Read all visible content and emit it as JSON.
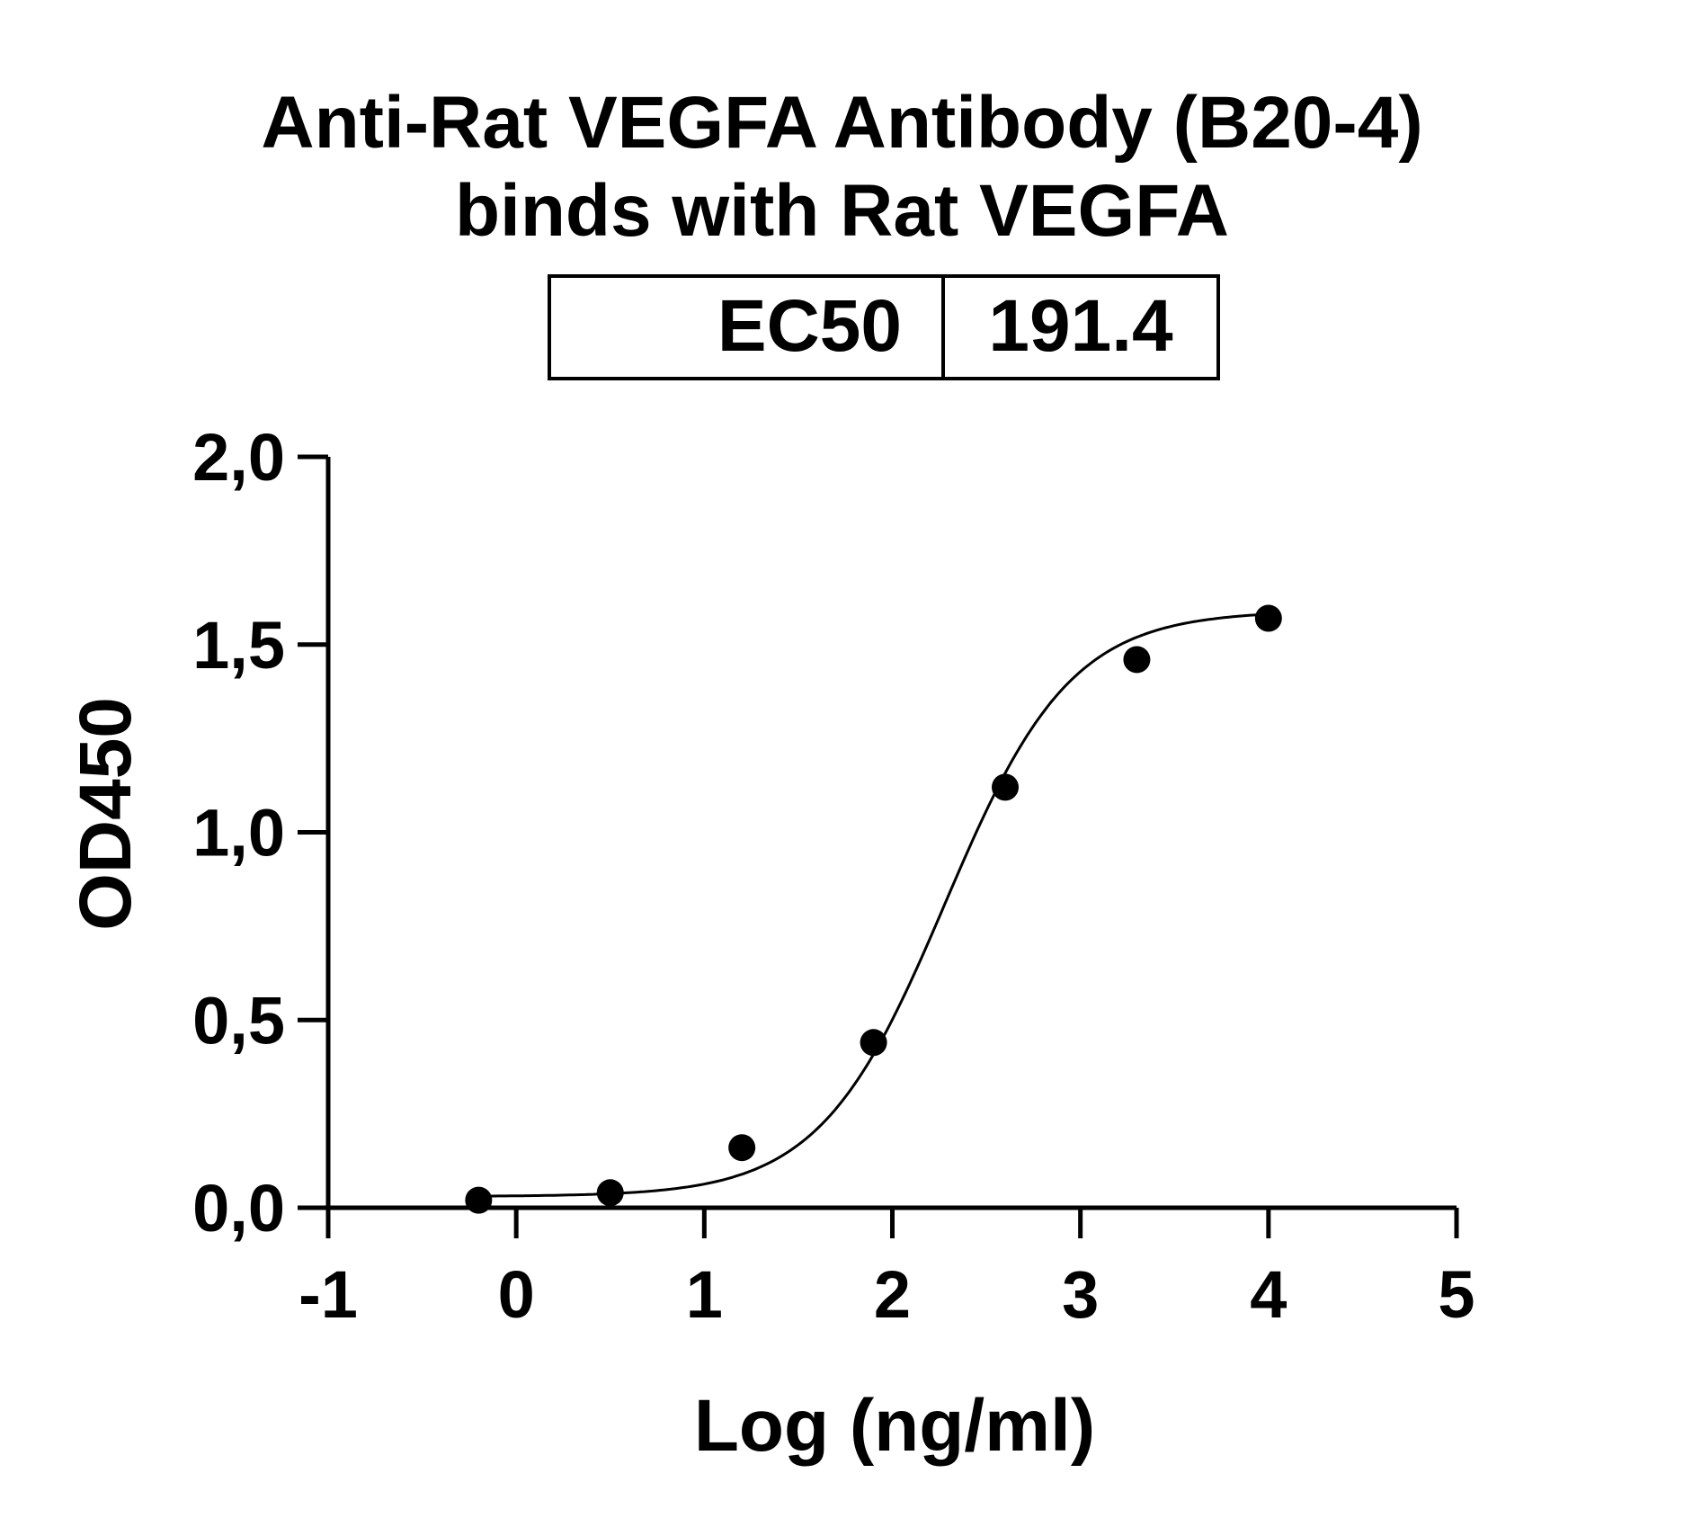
{
  "title_lines": [
    "Anti-Rat VEGFA Antibody (B20-4)",
    "binds with Rat VEGFA"
  ],
  "ec50_table": {
    "label": "EC50",
    "value": "191.4"
  },
  "chart_data": {
    "type": "scatter",
    "title": "Anti-Rat VEGFA Antibody (B20-4) binds with Rat VEGFA",
    "xlabel": "Log (ng/ml)",
    "ylabel": "OD450",
    "xlim": [
      -1,
      5
    ],
    "ylim": [
      0,
      2
    ],
    "x_ticks": [
      "-1",
      "0",
      "1",
      "2",
      "3",
      "4",
      "5"
    ],
    "x_tick_values": [
      -1,
      0,
      1,
      2,
      3,
      4,
      5
    ],
    "y_ticks": [
      "0,0",
      "0,5",
      "1,0",
      "1,5",
      "2,0"
    ],
    "y_tick_values": [
      0,
      0.5,
      1.0,
      1.5,
      2.0
    ],
    "grid": false,
    "series": [
      {
        "points": [
          {
            "x": -0.2,
            "y": 0.02
          },
          {
            "x": 0.5,
            "y": 0.04
          },
          {
            "x": 1.2,
            "y": 0.16
          },
          {
            "x": 1.9,
            "y": 0.44
          },
          {
            "x": 2.6,
            "y": 1.12
          },
          {
            "x": 3.3,
            "y": 1.46
          },
          {
            "x": 4.0,
            "y": 1.57
          }
        ],
        "fit": {
          "type": "4PL",
          "bottom": 0.03,
          "top": 1.59,
          "log_ec50": 2.28,
          "hill": 1.3,
          "x_range": [
            -0.2,
            4.0
          ]
        }
      }
    ]
  }
}
